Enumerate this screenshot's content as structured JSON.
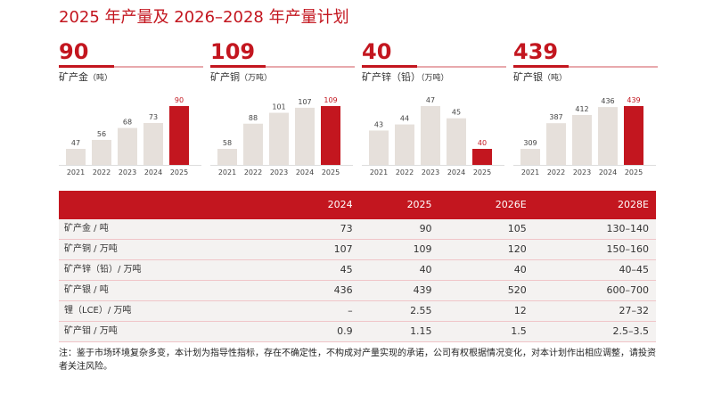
{
  "title": "2025 年产量及 2026–2028 年产量计划",
  "chart_data": [
    {
      "type": "bar",
      "headline": "90",
      "label": "矿产金",
      "unit": "（吨）",
      "categories": [
        "2021",
        "2022",
        "2023",
        "2024",
        "2025"
      ],
      "values": [
        47,
        56,
        68,
        73,
        90
      ],
      "highlight_color": "#c3161f",
      "base_color": "#e6e0db"
    },
    {
      "type": "bar",
      "headline": "109",
      "label": "矿产铜",
      "unit": "（万吨）",
      "categories": [
        "2021",
        "2022",
        "2023",
        "2024",
        "2025"
      ],
      "values": [
        58,
        88,
        101,
        107,
        109
      ],
      "highlight_color": "#c3161f",
      "base_color": "#e6e0db"
    },
    {
      "type": "bar",
      "headline": "40",
      "label": "矿产锌（铅）",
      "unit": "（万吨）",
      "categories": [
        "2021",
        "2022",
        "2023",
        "2024",
        "2025"
      ],
      "values": [
        43,
        44,
        47,
        45,
        40
      ],
      "highlight_color": "#c3161f",
      "base_color": "#e6e0db"
    },
    {
      "type": "bar",
      "headline": "439",
      "label": "矿产银",
      "unit": "（吨）",
      "categories": [
        "2021",
        "2022",
        "2023",
        "2024",
        "2025"
      ],
      "values": [
        309,
        387,
        412,
        436,
        439
      ],
      "highlight_color": "#c3161f",
      "base_color": "#e6e0db"
    }
  ],
  "table": {
    "headers": [
      "",
      "2024",
      "2025",
      "2026E",
      "2028E"
    ],
    "rows": [
      [
        "矿产金 / 吨",
        "73",
        "90",
        "105",
        "130–140"
      ],
      [
        "矿产铜 / 万吨",
        "107",
        "109",
        "120",
        "150–160"
      ],
      [
        "矿产锌（铅）/ 万吨",
        "45",
        "40",
        "40",
        "40–45"
      ],
      [
        "矿产银 / 吨",
        "436",
        "439",
        "520",
        "600–700"
      ],
      [
        "锂（LCE）/ 万吨",
        "–",
        "2.55",
        "12",
        "27–32"
      ],
      [
        "矿产钼 / 万吨",
        "0.9",
        "1.15",
        "1.5",
        "2.5–3.5"
      ]
    ]
  },
  "note": "注：鉴于市场环境复杂多变，本计划为指导性指标，存在不确定性，不构成对产量实现的承诺，公司有权根据情况变化，对本计划作出相应调整，请投资者关注风险。"
}
